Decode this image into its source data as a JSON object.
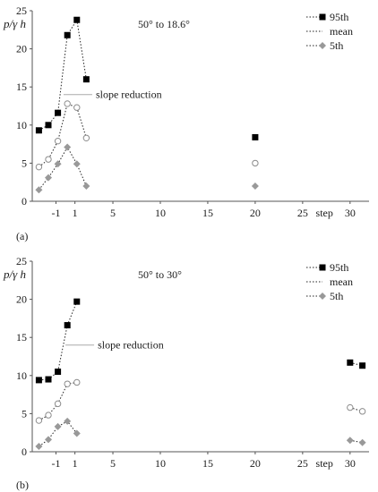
{
  "chart_data": [
    {
      "type": "line",
      "caption": "(a)",
      "title": "50° to 18.6°",
      "ylabel": "p/γ h",
      "xlabel": "step",
      "xlim": [
        -3.5,
        32
      ],
      "ylim": [
        0,
        25
      ],
      "xticks": [
        -1,
        1,
        5,
        10,
        15,
        20,
        25,
        30
      ],
      "yticks": [
        0,
        5,
        10,
        15,
        20,
        25
      ],
      "grid": false,
      "legend": "top-right",
      "annotation": "slope reduction",
      "annotation_at": [
        -0.2,
        14
      ],
      "series": [
        {
          "name": "95th",
          "marker": "square-filled",
          "color": "#000000",
          "x": [
            -2.8,
            -1.8,
            -0.8,
            0.2,
            1.2,
            2.2,
            20
          ],
          "y": [
            9.3,
            10.0,
            11.6,
            21.8,
            23.8,
            16.0,
            8.4
          ]
        },
        {
          "name": "mean",
          "marker": "circle-open",
          "color": "#8c8c8c",
          "x": [
            -2.8,
            -1.8,
            -0.8,
            0.2,
            1.2,
            2.2,
            20
          ],
          "y": [
            4.5,
            5.5,
            7.9,
            12.8,
            12.3,
            8.3,
            5.0
          ]
        },
        {
          "name": "5th",
          "marker": "diamond-filled",
          "color": "#999999",
          "x": [
            -2.8,
            -1.8,
            -0.8,
            0.2,
            1.2,
            2.2,
            20
          ],
          "y": [
            1.5,
            3.1,
            4.9,
            7.1,
            4.9,
            2.0,
            2.0
          ]
        }
      ]
    },
    {
      "type": "line",
      "caption": "(b)",
      "title": "50° to 30°",
      "ylabel": "p/γ h",
      "xlabel": "step",
      "xlim": [
        -3.5,
        32
      ],
      "ylim": [
        0,
        25
      ],
      "xticks": [
        -1,
        1,
        5,
        10,
        15,
        20,
        25,
        30
      ],
      "yticks": [
        0,
        5,
        10,
        15,
        20,
        25
      ],
      "grid": false,
      "legend": "top-right",
      "annotation": "slope reduction",
      "annotation_at": [
        0.0,
        14
      ],
      "series": [
        {
          "name": "95th",
          "marker": "square-filled",
          "color": "#000000",
          "x": [
            -2.8,
            -1.8,
            -0.8,
            0.2,
            1.2,
            30,
            31.3
          ],
          "y": [
            9.4,
            9.5,
            10.5,
            16.6,
            19.7,
            11.7,
            11.3
          ]
        },
        {
          "name": "mean",
          "marker": "circle-open",
          "color": "#8c8c8c",
          "x": [
            -2.8,
            -1.8,
            -0.8,
            0.2,
            1.2,
            30,
            31.3
          ],
          "y": [
            4.1,
            4.8,
            6.3,
            8.9,
            9.1,
            5.8,
            5.3
          ]
        },
        {
          "name": "5th",
          "marker": "diamond-filled",
          "color": "#999999",
          "x": [
            -2.8,
            -1.8,
            -0.8,
            0.2,
            1.2,
            30,
            31.3
          ],
          "y": [
            0.7,
            1.6,
            3.3,
            4.0,
            2.4,
            1.5,
            1.2
          ]
        }
      ]
    }
  ]
}
